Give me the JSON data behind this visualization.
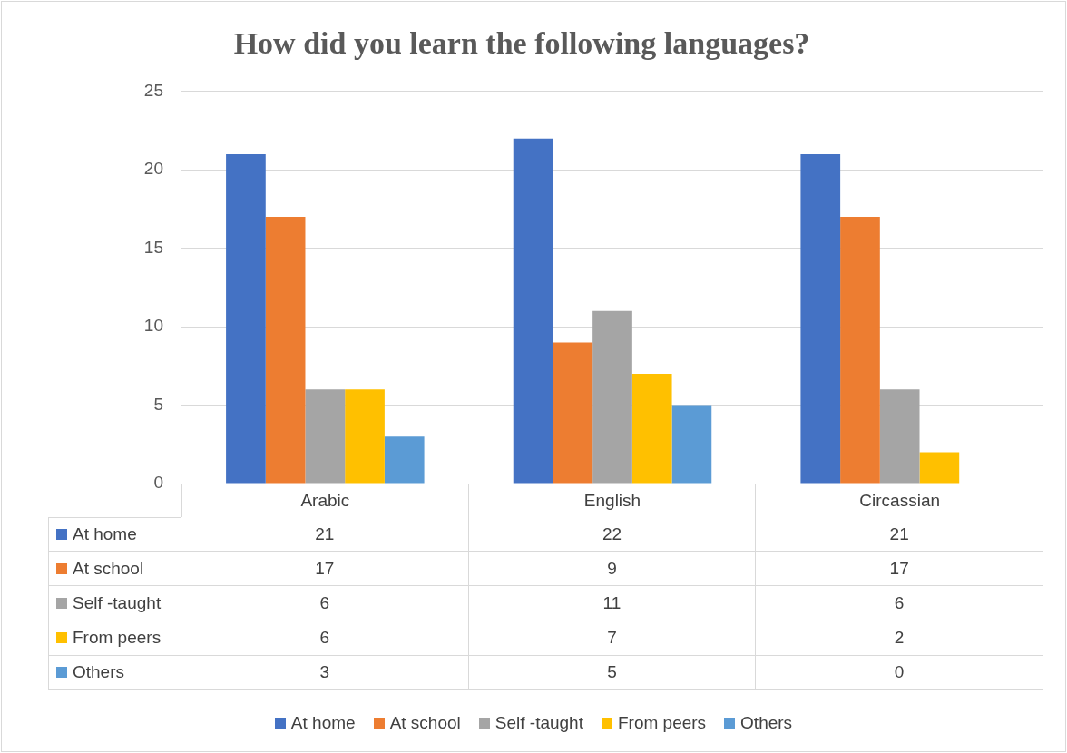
{
  "chart_data": {
    "type": "bar",
    "title": "How did you learn the following languages?",
    "categories": [
      "Arabic",
      "English",
      "Circassian"
    ],
    "series": [
      {
        "name": "At home",
        "color": "#4472c4",
        "values": [
          21,
          22,
          21
        ]
      },
      {
        "name": "At school",
        "color": "#ed7d31",
        "values": [
          17,
          9,
          17
        ]
      },
      {
        "name": "Self -taught",
        "color": "#a5a5a5",
        "values": [
          6,
          11,
          6
        ]
      },
      {
        "name": "From peers",
        "color": "#ffc000",
        "values": [
          6,
          7,
          2
        ]
      },
      {
        "name": "Others",
        "color": "#5b9bd5",
        "values": [
          3,
          5,
          0
        ]
      }
    ],
    "ylim": [
      0,
      25
    ],
    "yticks": [
      0,
      5,
      10,
      15,
      20,
      25
    ],
    "grid": "y",
    "legend": "bottom",
    "data_labels": true
  }
}
